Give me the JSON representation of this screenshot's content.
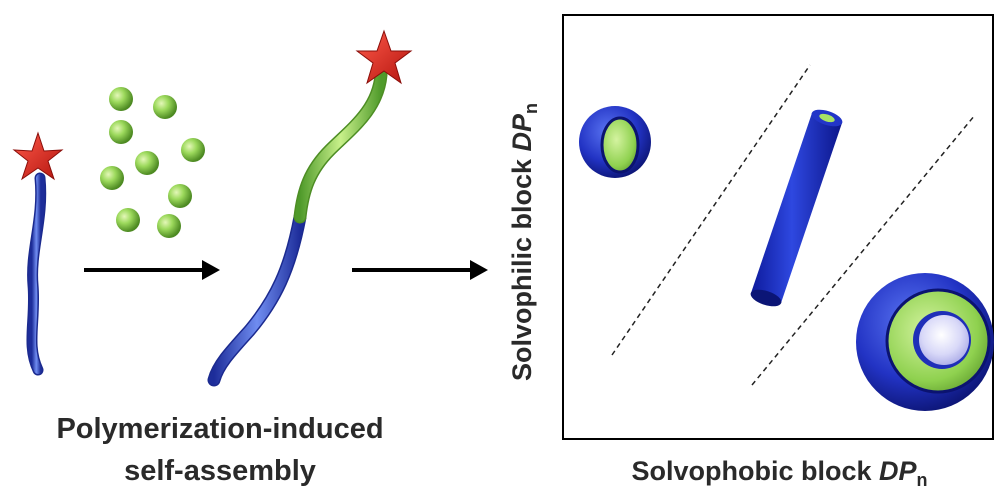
{
  "caption": {
    "line1": "Polymerization-induced",
    "line2": "self-assembly"
  },
  "axes": {
    "x_label_main": "Solvophobic block ",
    "x_label_italic": "DP",
    "x_label_sub": "n",
    "y_label_main": "Solvophilic block ",
    "y_label_italic": "DP",
    "y_label_sub": "n"
  },
  "colors": {
    "solvophilic_blue": "#2e43c8",
    "solvophobic_green": "#8fd14f",
    "star_red": "#d9231c",
    "lumen_lavender": "#d8d8f8"
  },
  "morphologies": [
    "spherical-micelle",
    "worm-cylinder",
    "vesicle"
  ]
}
